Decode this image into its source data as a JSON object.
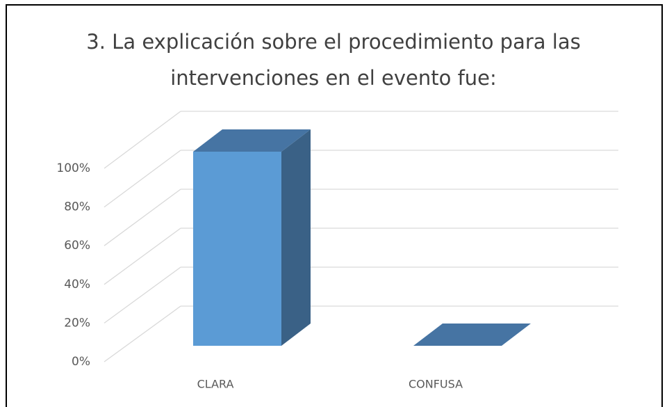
{
  "chart_data": {
    "type": "bar3d",
    "title": "3. La explicación sobre el procedimiento para las intervenciones en el evento fue:",
    "categories": [
      "CLARA",
      "CONFUSA"
    ],
    "values": [
      100,
      0
    ],
    "color": "#5b9bd5",
    "ylim": [
      0,
      100
    ],
    "yticks": [
      {
        "value": 0,
        "label": "0%"
      },
      {
        "value": 20,
        "label": "20%"
      },
      {
        "value": 40,
        "label": "40%"
      },
      {
        "value": 60,
        "label": "60%"
      },
      {
        "value": 80,
        "label": "80%"
      },
      {
        "value": 100,
        "label": "100%"
      }
    ],
    "grid": true
  }
}
